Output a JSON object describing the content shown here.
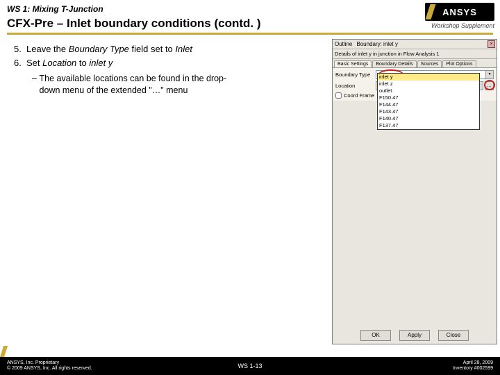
{
  "header": {
    "ws_title": "WS 1: Mixing T-Junction",
    "page_title": "CFX-Pre – Inlet boundary conditions (contd. )",
    "supplement": "Workshop Supplement",
    "logo_text": "ANSYS"
  },
  "instructions": {
    "item5_num": "5.",
    "item5_a": "Leave the ",
    "item5_b": "Boundary Type",
    "item5_c": " field set to ",
    "item5_d": "Inlet",
    "item6_num": "6.",
    "item6_a": "Set ",
    "item6_b": "Location",
    "item6_c": " to ",
    "item6_d": "inlet y",
    "sub_dash": "–",
    "sub_text": "The available locations can be found in the drop-down menu of the extended \"…\" menu"
  },
  "panel": {
    "outline_label": "Outline",
    "boundary_tab": "Boundary: inlet y",
    "close_x": "×",
    "details_text": "Details of inlet y in junction in Flow Analysis 1",
    "tabs": {
      "t0": "Basic Settings",
      "t1": "Boundary Details",
      "t2": "Sources",
      "t3": "Plot Options"
    },
    "boundary_type_label": "Boundary Type",
    "boundary_type_value": "Inlet",
    "location_label": "Location",
    "location_value": "inlet y",
    "ext_btn": "…",
    "coord_frame_label": "Coord Frame",
    "dropdown": {
      "o0": "inlet y",
      "o1": "inlet z",
      "o2": "outlet",
      "o3": "F150.47",
      "o4": "F144.47",
      "o5": "F143.47",
      "o6": "F140.47",
      "o7": "F137.47"
    },
    "btn_ok": "OK",
    "btn_apply": "Apply",
    "btn_close": "Close"
  },
  "footer": {
    "prop1": "ANSYS, Inc. Proprietary",
    "prop2": "© 2009 ANSYS, Inc.  All rights reserved.",
    "page": "WS 1-13",
    "date": "April 28, 2009",
    "inv": "Inventory #002599"
  }
}
